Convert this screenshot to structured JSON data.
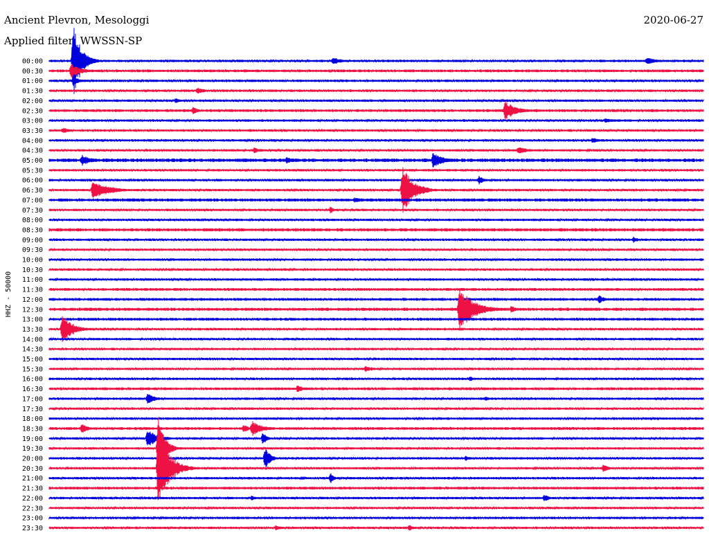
{
  "header": {
    "station": "Ancient Plevron, Mesologgi",
    "date": "2020-06-27",
    "filter": "Applied filter: WWSSN-SP"
  },
  "colors": {
    "blue": "#0000dd",
    "red": "#ee1144"
  },
  "chart_data": {
    "type": "line",
    "channel_label": "HHZ - 50000",
    "row_colors": [
      "blue",
      "red"
    ],
    "x_unit": "minutes",
    "x_range": [
      0,
      30
    ],
    "rows": [
      "00:00",
      "00:30",
      "01:00",
      "01:30",
      "02:00",
      "02:30",
      "03:00",
      "03:30",
      "04:00",
      "04:30",
      "05:00",
      "05:30",
      "06:00",
      "06:30",
      "07:00",
      "07:30",
      "08:00",
      "08:30",
      "09:00",
      "09:30",
      "10:00",
      "10:30",
      "11:00",
      "11:30",
      "12:00",
      "12:30",
      "13:00",
      "13:30",
      "14:00",
      "14:30",
      "15:00",
      "15:30",
      "16:00",
      "16:30",
      "17:00",
      "17:30",
      "18:00",
      "18:30",
      "19:00",
      "19:30",
      "20:00",
      "20:30",
      "21:00",
      "21:30",
      "22:00",
      "22:30",
      "23:00",
      "23:30"
    ],
    "noise": [
      0.12,
      0.14,
      0.12,
      0.12,
      0.12,
      0.14,
      0.12,
      0.12,
      0.12,
      0.12,
      0.18,
      0.12,
      0.12,
      0.12,
      0.16,
      0.12,
      0.12,
      0.16,
      0.12,
      0.12,
      0.12,
      0.12,
      0.12,
      0.14,
      0.14,
      0.16,
      0.14,
      0.12,
      0.12,
      0.12,
      0.12,
      0.12,
      0.12,
      0.14,
      0.12,
      0.12,
      0.12,
      0.14,
      0.12,
      0.12,
      0.12,
      0.12,
      0.12,
      0.14,
      0.12,
      0.12,
      0.12,
      0.12
    ],
    "events": [
      {
        "row": 0,
        "minute": 1.1,
        "amp": 4.0,
        "dur": 0.6
      },
      {
        "row": 1,
        "minute": 1.0,
        "amp": 0.8,
        "dur": 0.8
      },
      {
        "row": 2,
        "minute": 1.1,
        "amp": 0.5,
        "dur": 0.5
      },
      {
        "row": 0,
        "minute": 13.0,
        "amp": 0.4,
        "dur": 0.8
      },
      {
        "row": 0,
        "minute": 27.4,
        "amp": 0.4,
        "dur": 0.8
      },
      {
        "row": 3,
        "minute": 6.8,
        "amp": 0.4,
        "dur": 0.5
      },
      {
        "row": 4,
        "minute": 5.8,
        "amp": 0.3,
        "dur": 0.4
      },
      {
        "row": 5,
        "minute": 6.6,
        "amp": 0.4,
        "dur": 0.4
      },
      {
        "row": 5,
        "minute": 20.9,
        "amp": 1.0,
        "dur": 0.9
      },
      {
        "row": 6,
        "minute": 25.5,
        "amp": 0.3,
        "dur": 0.6
      },
      {
        "row": 7,
        "minute": 0.6,
        "amp": 0.3,
        "dur": 0.8
      },
      {
        "row": 8,
        "minute": 24.9,
        "amp": 0.3,
        "dur": 0.6
      },
      {
        "row": 9,
        "minute": 9.4,
        "amp": 0.3,
        "dur": 0.6
      },
      {
        "row": 9,
        "minute": 21.5,
        "amp": 0.4,
        "dur": 0.8
      },
      {
        "row": 10,
        "minute": 1.5,
        "amp": 0.6,
        "dur": 0.8
      },
      {
        "row": 10,
        "minute": 10.9,
        "amp": 0.4,
        "dur": 0.4
      },
      {
        "row": 10,
        "minute": 17.6,
        "amp": 0.8,
        "dur": 0.9
      },
      {
        "row": 12,
        "minute": 19.7,
        "amp": 0.5,
        "dur": 0.4
      },
      {
        "row": 13,
        "minute": 2.0,
        "amp": 1.0,
        "dur": 1.3
      },
      {
        "row": 13,
        "minute": 16.2,
        "amp": 2.5,
        "dur": 0.9
      },
      {
        "row": 14,
        "minute": 14.0,
        "amp": 0.3,
        "dur": 0.6
      },
      {
        "row": 15,
        "minute": 12.9,
        "amp": 0.4,
        "dur": 0.3
      },
      {
        "row": 18,
        "minute": 26.8,
        "amp": 0.4,
        "dur": 0.3
      },
      {
        "row": 24,
        "minute": 25.2,
        "amp": 0.5,
        "dur": 0.4
      },
      {
        "row": 25,
        "minute": 18.8,
        "amp": 2.2,
        "dur": 1.2
      },
      {
        "row": 25,
        "minute": 21.2,
        "amp": 0.5,
        "dur": 0.3
      },
      {
        "row": 27,
        "minute": 0.6,
        "amp": 1.6,
        "dur": 0.8
      },
      {
        "row": 31,
        "minute": 14.5,
        "amp": 0.3,
        "dur": 0.8
      },
      {
        "row": 32,
        "minute": 19.3,
        "amp": 0.3,
        "dur": 0.3
      },
      {
        "row": 33,
        "minute": 11.4,
        "amp": 0.5,
        "dur": 0.3
      },
      {
        "row": 34,
        "minute": 4.5,
        "amp": 0.6,
        "dur": 0.6
      },
      {
        "row": 34,
        "minute": 20.0,
        "amp": 0.3,
        "dur": 0.3
      },
      {
        "row": 37,
        "minute": 1.5,
        "amp": 0.5,
        "dur": 0.5
      },
      {
        "row": 37,
        "minute": 8.9,
        "amp": 0.4,
        "dur": 0.6
      },
      {
        "row": 37,
        "minute": 9.3,
        "amp": 0.8,
        "dur": 0.9
      },
      {
        "row": 38,
        "minute": 4.5,
        "amp": 0.9,
        "dur": 0.9
      },
      {
        "row": 38,
        "minute": 9.8,
        "amp": 0.8,
        "dur": 0.3
      },
      {
        "row": 39,
        "minute": 5.0,
        "amp": 3.5,
        "dur": 0.5
      },
      {
        "row": 40,
        "minute": 9.9,
        "amp": 1.2,
        "dur": 0.4
      },
      {
        "row": 40,
        "minute": 19.1,
        "amp": 0.3,
        "dur": 0.3
      },
      {
        "row": 41,
        "minute": 25.4,
        "amp": 0.4,
        "dur": 0.5
      },
      {
        "row": 41,
        "minute": 5.0,
        "amp": 4.0,
        "dur": 0.9
      },
      {
        "row": 42,
        "minute": 12.9,
        "amp": 0.6,
        "dur": 0.3
      },
      {
        "row": 44,
        "minute": 9.3,
        "amp": 0.3,
        "dur": 0.3
      },
      {
        "row": 44,
        "minute": 22.7,
        "amp": 0.4,
        "dur": 0.4
      },
      {
        "row": 47,
        "minute": 10.4,
        "amp": 0.3,
        "dur": 0.5
      },
      {
        "row": 47,
        "minute": 16.5,
        "amp": 0.3,
        "dur": 0.5
      }
    ]
  }
}
